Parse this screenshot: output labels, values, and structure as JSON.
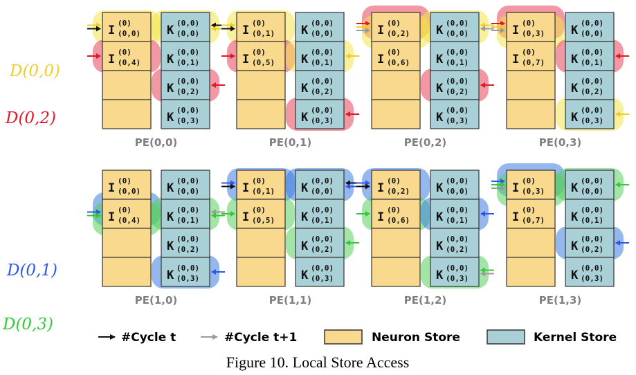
{
  "colors": {
    "neuron_fill": "#f8d98e",
    "kernel_fill": "#a9d0d6",
    "yellow_hl": "#f2e34a",
    "red_hl": "#e8435a",
    "blue_hl": "#3d7de0",
    "green_hl": "#57cf5e",
    "arrow_dark": "#111111",
    "arrow_light": "#9a9a9a",
    "ink_yellow": "#f0cc2e",
    "ink_red": "#e0182a",
    "ink_blue": "#2f56e6",
    "ink_green": "#35c83a"
  },
  "handwritten": {
    "d00": "D(0,0)",
    "d02": "D(0,2)",
    "d01": "D(0,1)",
    "d03": "D(0,3)"
  },
  "pes": [
    {
      "label": "PE(0,0)",
      "neuron": [
        {
          "main": "I",
          "sup": "(0)",
          "sub": "(0,0)",
          "hl": "yellow",
          "arrows": [
            "yellow",
            "dark"
          ]
        },
        {
          "main": "I",
          "sup": "(0)",
          "sub": "(0,4)",
          "hl": "red",
          "arrows": [
            "red"
          ]
        },
        {
          "main": "",
          "sup": "",
          "sub": "",
          "hl": "",
          "arrows": []
        },
        {
          "main": "",
          "sup": "",
          "sub": "",
          "hl": "",
          "arrows": []
        }
      ],
      "kernel": [
        {
          "main": "K",
          "sup": "(0,0)",
          "sub": "(0,0)",
          "hl": "yellow",
          "arrows": [
            "dark",
            "yellow"
          ]
        },
        {
          "main": "K",
          "sup": "(0,0)",
          "sub": "(0,1)",
          "hl": "",
          "arrows": []
        },
        {
          "main": "K",
          "sup": "(0,0)",
          "sub": "(0,2)",
          "hl": "red",
          "arrows": [
            "red"
          ]
        },
        {
          "main": "K",
          "sup": "(0,0)",
          "sub": "(0,3)",
          "hl": "",
          "arrows": []
        }
      ]
    },
    {
      "label": "PE(0,1)",
      "neuron": [
        {
          "main": "I",
          "sup": "(0)",
          "sub": "(0,1)",
          "hl": "yellow",
          "arrows": [
            "yellow",
            "dark"
          ]
        },
        {
          "main": "I",
          "sup": "(0)",
          "sub": "(0,5)",
          "hl": "red",
          "arrows": [
            "red"
          ]
        },
        {
          "main": "",
          "sup": "",
          "sub": "",
          "hl": "",
          "arrows": []
        },
        {
          "main": "",
          "sup": "",
          "sub": "",
          "hl": "",
          "arrows": []
        }
      ],
      "kernel": [
        {
          "main": "K",
          "sup": "(0,0)",
          "sub": "(0,0)",
          "hl": "",
          "arrows": []
        },
        {
          "main": "K",
          "sup": "(0,0)",
          "sub": "(0,1)",
          "hl": "yellow",
          "arrows": [
            "yellow"
          ]
        },
        {
          "main": "K",
          "sup": "(0,0)",
          "sub": "(0,2)",
          "hl": "",
          "arrows": []
        },
        {
          "main": "K",
          "sup": "(0,0)",
          "sub": "(0,3)",
          "hl": "red",
          "arrows": [
            "red"
          ]
        }
      ]
    },
    {
      "label": "PE(0,2)",
      "neuron": [
        {
          "main": "I",
          "sup": "(0)",
          "sub": "(0,2)",
          "hl": "redyellow",
          "arrows": [
            "red",
            "yellow",
            "light"
          ]
        },
        {
          "main": "I",
          "sup": "(0)",
          "sub": "(0,6)",
          "hl": "",
          "arrows": []
        },
        {
          "main": "",
          "sup": "",
          "sub": "",
          "hl": "",
          "arrows": []
        },
        {
          "main": "",
          "sup": "",
          "sub": "",
          "hl": "",
          "arrows": []
        }
      ],
      "kernel": [
        {
          "main": "K",
          "sup": "(0,0)",
          "sub": "(0,0)",
          "hl": "yellow",
          "arrows": [
            "yellow",
            "light"
          ]
        },
        {
          "main": "K",
          "sup": "(0,0)",
          "sub": "(0,1)",
          "hl": "",
          "arrows": []
        },
        {
          "main": "K",
          "sup": "(0,0)",
          "sub": "(0,2)",
          "hl": "red",
          "arrows": [
            "red"
          ]
        },
        {
          "main": "K",
          "sup": "(0,0)",
          "sub": "(0,3)",
          "hl": "",
          "arrows": []
        }
      ]
    },
    {
      "label": "PE(0,3)",
      "neuron": [
        {
          "main": "I",
          "sup": "(0)",
          "sub": "(0,3)",
          "hl": "redyellow",
          "arrows": [
            "red",
            "yellow",
            "light"
          ]
        },
        {
          "main": "I",
          "sup": "(0)",
          "sub": "(0,7)",
          "hl": "",
          "arrows": []
        },
        {
          "main": "",
          "sup": "",
          "sub": "",
          "hl": "",
          "arrows": []
        },
        {
          "main": "",
          "sup": "",
          "sub": "",
          "hl": "",
          "arrows": []
        }
      ],
      "kernel": [
        {
          "main": "K",
          "sup": "(0,0)",
          "sub": "(0,0)",
          "hl": "",
          "arrows": []
        },
        {
          "main": "K",
          "sup": "(0,0)",
          "sub": "(0,1)",
          "hl": "red",
          "arrows": [
            "red"
          ]
        },
        {
          "main": "K",
          "sup": "(0,0)",
          "sub": "(0,2)",
          "hl": "",
          "arrows": []
        },
        {
          "main": "K",
          "sup": "(0,0)",
          "sub": "(0,3)",
          "hl": "yellow",
          "arrows": [
            "yellow"
          ]
        }
      ]
    },
    {
      "label": "PE(1,0)",
      "neuron": [
        {
          "main": "I",
          "sup": "(0)",
          "sub": "(0,0)",
          "hl": "",
          "arrows": []
        },
        {
          "main": "I",
          "sup": "(0)",
          "sub": "(0,4)",
          "hl": "bluegreen",
          "arrows": [
            "blue",
            "green"
          ]
        },
        {
          "main": "",
          "sup": "",
          "sub": "",
          "hl": "",
          "arrows": []
        },
        {
          "main": "",
          "sup": "",
          "sub": "",
          "hl": "",
          "arrows": []
        }
      ],
      "kernel": [
        {
          "main": "K",
          "sup": "(0,0)",
          "sub": "(0,0)",
          "hl": "",
          "arrows": []
        },
        {
          "main": "K",
          "sup": "(0,0)",
          "sub": "(0,1)",
          "hl": "green",
          "arrows": [
            "light",
            "green"
          ]
        },
        {
          "main": "K",
          "sup": "(0,0)",
          "sub": "(0,2)",
          "hl": "",
          "arrows": []
        },
        {
          "main": "K",
          "sup": "(0,0)",
          "sub": "(0,3)",
          "hl": "blue",
          "arrows": [
            "blue"
          ]
        }
      ]
    },
    {
      "label": "PE(1,1)",
      "neuron": [
        {
          "main": "I",
          "sup": "(0)",
          "sub": "(0,1)",
          "hl": "blue",
          "arrows": [
            "blue",
            "dark"
          ]
        },
        {
          "main": "I",
          "sup": "(0)",
          "sub": "(0,5)",
          "hl": "green",
          "arrows": [
            "green"
          ]
        },
        {
          "main": "",
          "sup": "",
          "sub": "",
          "hl": "",
          "arrows": []
        },
        {
          "main": "",
          "sup": "",
          "sub": "",
          "hl": "",
          "arrows": []
        }
      ],
      "kernel": [
        {
          "main": "K",
          "sup": "(0,0)",
          "sub": "(0,0)",
          "hl": "blue",
          "arrows": [
            "dark",
            "blue"
          ]
        },
        {
          "main": "K",
          "sup": "(0,0)",
          "sub": "(0,1)",
          "hl": "",
          "arrows": []
        },
        {
          "main": "K",
          "sup": "(0,0)",
          "sub": "(0,2)",
          "hl": "green",
          "arrows": [
            "green"
          ]
        },
        {
          "main": "K",
          "sup": "(0,0)",
          "sub": "(0,3)",
          "hl": "",
          "arrows": []
        }
      ]
    },
    {
      "label": "PE(1,2)",
      "neuron": [
        {
          "main": "I",
          "sup": "(0)",
          "sub": "(0,2)",
          "hl": "blue",
          "arrows": [
            "blue",
            "dark"
          ]
        },
        {
          "main": "I",
          "sup": "(0)",
          "sub": "(0,6)",
          "hl": "green",
          "arrows": [
            "green"
          ]
        },
        {
          "main": "",
          "sup": "",
          "sub": "",
          "hl": "",
          "arrows": []
        },
        {
          "main": "",
          "sup": "",
          "sub": "",
          "hl": "",
          "arrows": []
        }
      ],
      "kernel": [
        {
          "main": "K",
          "sup": "(0,0)",
          "sub": "(0,0)",
          "hl": "",
          "arrows": []
        },
        {
          "main": "K",
          "sup": "(0,0)",
          "sub": "(0,1)",
          "hl": "blue",
          "arrows": [
            "blue"
          ]
        },
        {
          "main": "K",
          "sup": "(0,0)",
          "sub": "(0,2)",
          "hl": "",
          "arrows": []
        },
        {
          "main": "K",
          "sup": "(0,0)",
          "sub": "(0,3)",
          "hl": "green",
          "arrows": [
            "green",
            "light"
          ]
        }
      ]
    },
    {
      "label": "PE(1,3)",
      "neuron": [
        {
          "main": "I",
          "sup": "(0)",
          "sub": "(0,3)",
          "hl": "bluegreen",
          "arrows": [
            "blue",
            "green",
            "light"
          ]
        },
        {
          "main": "I",
          "sup": "(0)",
          "sub": "(0,7)",
          "hl": "",
          "arrows": []
        },
        {
          "main": "",
          "sup": "",
          "sub": "",
          "hl": "",
          "arrows": []
        },
        {
          "main": "",
          "sup": "",
          "sub": "",
          "hl": "",
          "arrows": []
        }
      ],
      "kernel": [
        {
          "main": "K",
          "sup": "(0,0)",
          "sub": "(0,0)",
          "hl": "green",
          "arrows": [
            "green"
          ]
        },
        {
          "main": "K",
          "sup": "(0,0)",
          "sub": "(0,1)",
          "hl": "",
          "arrows": []
        },
        {
          "main": "K",
          "sup": "(0,0)",
          "sub": "(0,2)",
          "hl": "blue",
          "arrows": [
            "blue"
          ]
        },
        {
          "main": "K",
          "sup": "(0,0)",
          "sub": "(0,3)",
          "hl": "",
          "arrows": []
        }
      ]
    }
  ],
  "legend": {
    "cycle_t": "#Cycle t",
    "cycle_t1": "#Cycle t+1",
    "neuron_store": "Neuron Store",
    "kernel_store": "Kernel Store"
  },
  "caption": "Figure 10. Local Store Access"
}
